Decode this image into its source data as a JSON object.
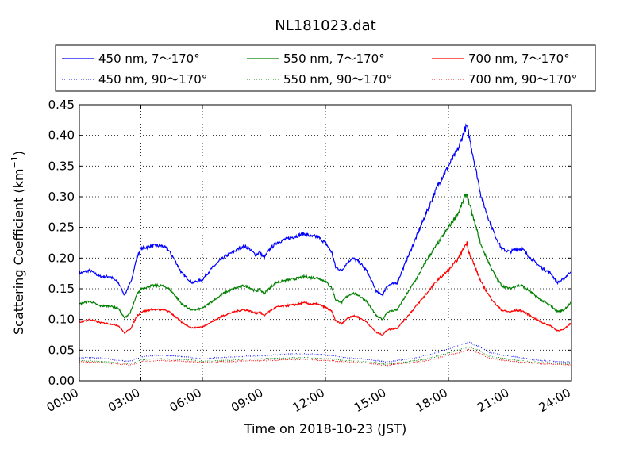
{
  "chart_data": {
    "type": "line",
    "title": "NL181023.dat",
    "xlabel": "Time on 2018-10-23 (JST)",
    "ylabel": "Scattering Coefficient (km",
    "ylabel_sup": "−1",
    "ylabel_end": ")",
    "xlim": [
      0,
      24
    ],
    "ylim": [
      0,
      0.45
    ],
    "x_ticks": [
      0,
      3,
      6,
      9,
      12,
      15,
      18,
      21,
      24
    ],
    "x_tick_labels": [
      "00:00",
      "03:00",
      "06:00",
      "09:00",
      "12:00",
      "15:00",
      "18:00",
      "21:00",
      "24:00"
    ],
    "y_ticks": [
      0,
      0.05,
      0.1,
      0.15,
      0.2,
      0.25,
      0.3,
      0.35,
      0.4,
      0.45
    ],
    "y_tick_labels": [
      "0.00",
      "0.05",
      "0.10",
      "0.15",
      "0.20",
      "0.25",
      "0.30",
      "0.35",
      "0.40",
      "0.45"
    ],
    "grid": true,
    "legend_position": "top, above plot",
    "series": [
      {
        "name": "450 nm, 7～170°",
        "color": "#0000ff",
        "style": "solid",
        "x": [
          0,
          0.5,
          1,
          1.5,
          1.9,
          2.2,
          2.5,
          2.8,
          3,
          3.5,
          4,
          4.3,
          4.6,
          5,
          5.5,
          6,
          6.5,
          7,
          7.5,
          8,
          8.3,
          8.6,
          8.8,
          9,
          9.3,
          9.6,
          10,
          10.5,
          11,
          11.3,
          11.6,
          12,
          12.3,
          12.5,
          12.8,
          13,
          13.3,
          13.6,
          14,
          14.5,
          14.8,
          15,
          15.5,
          16,
          16.5,
          17,
          17.5,
          18,
          18.5,
          18.8,
          18.9,
          19,
          19.3,
          19.6,
          20,
          20.3,
          20.6,
          21,
          21.3,
          21.6,
          22,
          22.5,
          23,
          23.3,
          23.6,
          24
        ],
        "y": [
          0.175,
          0.18,
          0.17,
          0.17,
          0.16,
          0.14,
          0.16,
          0.2,
          0.215,
          0.22,
          0.22,
          0.215,
          0.2,
          0.175,
          0.16,
          0.165,
          0.185,
          0.2,
          0.21,
          0.22,
          0.215,
          0.205,
          0.21,
          0.2,
          0.215,
          0.225,
          0.23,
          0.235,
          0.24,
          0.235,
          0.235,
          0.225,
          0.21,
          0.185,
          0.18,
          0.19,
          0.2,
          0.195,
          0.18,
          0.145,
          0.14,
          0.155,
          0.16,
          0.2,
          0.24,
          0.28,
          0.32,
          0.35,
          0.38,
          0.41,
          0.415,
          0.4,
          0.35,
          0.3,
          0.26,
          0.235,
          0.215,
          0.21,
          0.215,
          0.215,
          0.2,
          0.185,
          0.175,
          0.16,
          0.165,
          0.18
        ]
      },
      {
        "name": "550 nm, 7～170°",
        "color": "#008000",
        "style": "solid",
        "x": [
          0,
          0.5,
          1,
          1.5,
          1.9,
          2.2,
          2.5,
          2.8,
          3,
          3.5,
          4,
          4.3,
          4.6,
          5,
          5.5,
          6,
          6.5,
          7,
          7.5,
          8,
          8.3,
          8.6,
          8.8,
          9,
          9.3,
          9.6,
          10,
          10.5,
          11,
          11.3,
          11.6,
          12,
          12.3,
          12.5,
          12.8,
          13,
          13.3,
          13.6,
          14,
          14.5,
          14.8,
          15,
          15.5,
          16,
          16.5,
          17,
          17.5,
          18,
          18.5,
          18.8,
          18.9,
          19,
          19.3,
          19.6,
          20,
          20.3,
          20.6,
          21,
          21.3,
          21.6,
          22,
          22.5,
          23,
          23.3,
          23.6,
          24
        ],
        "y": [
          0.125,
          0.13,
          0.122,
          0.122,
          0.118,
          0.102,
          0.112,
          0.14,
          0.15,
          0.155,
          0.155,
          0.152,
          0.142,
          0.125,
          0.115,
          0.118,
          0.13,
          0.142,
          0.15,
          0.155,
          0.152,
          0.146,
          0.149,
          0.142,
          0.152,
          0.16,
          0.163,
          0.166,
          0.17,
          0.168,
          0.168,
          0.162,
          0.152,
          0.132,
          0.128,
          0.136,
          0.143,
          0.14,
          0.13,
          0.105,
          0.1,
          0.112,
          0.116,
          0.143,
          0.17,
          0.2,
          0.225,
          0.25,
          0.275,
          0.3,
          0.305,
          0.29,
          0.255,
          0.22,
          0.19,
          0.17,
          0.155,
          0.15,
          0.155,
          0.155,
          0.145,
          0.132,
          0.122,
          0.113,
          0.115,
          0.128
        ]
      },
      {
        "name": "700 nm, 7～170°",
        "color": "#ff0000",
        "style": "solid",
        "x": [
          0,
          0.5,
          1,
          1.5,
          1.9,
          2.2,
          2.5,
          2.8,
          3,
          3.5,
          4,
          4.3,
          4.6,
          5,
          5.5,
          6,
          6.5,
          7,
          7.5,
          8,
          8.3,
          8.6,
          8.8,
          9,
          9.3,
          9.6,
          10,
          10.5,
          11,
          11.3,
          11.6,
          12,
          12.3,
          12.5,
          12.8,
          13,
          13.3,
          13.6,
          14,
          14.5,
          14.8,
          15,
          15.5,
          16,
          16.5,
          17,
          17.5,
          18,
          18.5,
          18.8,
          18.9,
          19,
          19.3,
          19.6,
          20,
          20.3,
          20.6,
          21,
          21.3,
          21.6,
          22,
          22.5,
          23,
          23.3,
          23.6,
          24
        ],
        "y": [
          0.095,
          0.1,
          0.095,
          0.093,
          0.09,
          0.078,
          0.085,
          0.105,
          0.112,
          0.116,
          0.116,
          0.114,
          0.107,
          0.095,
          0.086,
          0.088,
          0.097,
          0.106,
          0.112,
          0.116,
          0.114,
          0.11,
          0.112,
          0.106,
          0.114,
          0.12,
          0.122,
          0.124,
          0.127,
          0.125,
          0.125,
          0.12,
          0.113,
          0.098,
          0.093,
          0.1,
          0.106,
          0.104,
          0.096,
          0.078,
          0.075,
          0.083,
          0.086,
          0.105,
          0.125,
          0.145,
          0.165,
          0.18,
          0.2,
          0.22,
          0.225,
          0.21,
          0.185,
          0.16,
          0.138,
          0.125,
          0.115,
          0.112,
          0.115,
          0.114,
          0.106,
          0.096,
          0.089,
          0.082,
          0.083,
          0.095
        ]
      },
      {
        "name": "450 nm, 90～170°",
        "color": "#0000ff",
        "style": "dotted",
        "x": [
          0,
          1,
          2,
          2.5,
          3,
          4,
          5,
          6,
          7,
          8,
          9,
          10,
          11,
          12,
          13,
          14,
          15,
          16,
          17,
          18,
          18.5,
          19,
          19.5,
          20,
          21,
          22,
          23,
          24
        ],
        "y": [
          0.038,
          0.037,
          0.033,
          0.032,
          0.039,
          0.042,
          0.04,
          0.036,
          0.038,
          0.04,
          0.041,
          0.043,
          0.044,
          0.042,
          0.038,
          0.035,
          0.031,
          0.035,
          0.042,
          0.052,
          0.058,
          0.063,
          0.056,
          0.046,
          0.04,
          0.035,
          0.032,
          0.03
        ]
      },
      {
        "name": "550 nm, 90～170°",
        "color": "#008000",
        "style": "dotted",
        "x": [
          0,
          1,
          2,
          2.5,
          3,
          4,
          5,
          6,
          7,
          8,
          9,
          10,
          11,
          12,
          13,
          14,
          15,
          16,
          17,
          18,
          18.5,
          19,
          19.5,
          20,
          21,
          22,
          23,
          24
        ],
        "y": [
          0.033,
          0.032,
          0.029,
          0.028,
          0.034,
          0.036,
          0.035,
          0.032,
          0.033,
          0.035,
          0.036,
          0.037,
          0.038,
          0.036,
          0.033,
          0.031,
          0.027,
          0.031,
          0.036,
          0.045,
          0.05,
          0.055,
          0.049,
          0.04,
          0.035,
          0.031,
          0.029,
          0.027
        ]
      },
      {
        "name": "700 nm, 90～170°",
        "color": "#ff0000",
        "style": "dotted",
        "x": [
          0,
          1,
          2,
          2.5,
          3,
          4,
          5,
          6,
          7,
          8,
          9,
          10,
          11,
          12,
          13,
          14,
          15,
          16,
          17,
          18,
          18.5,
          19,
          19.5,
          20,
          21,
          22,
          23,
          24
        ],
        "y": [
          0.031,
          0.03,
          0.027,
          0.026,
          0.031,
          0.033,
          0.032,
          0.03,
          0.031,
          0.032,
          0.033,
          0.034,
          0.035,
          0.033,
          0.031,
          0.029,
          0.025,
          0.029,
          0.033,
          0.042,
          0.046,
          0.051,
          0.045,
          0.037,
          0.032,
          0.029,
          0.027,
          0.026
        ]
      }
    ]
  }
}
